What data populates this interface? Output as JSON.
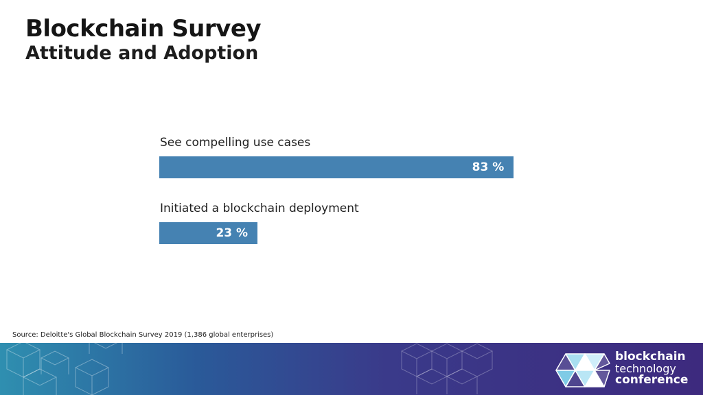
{
  "header": {
    "title": "Blockchain Survey",
    "subtitle": "Attitude and Adoption"
  },
  "chart_data": {
    "type": "bar",
    "orientation": "horizontal",
    "categories": [
      "See compelling use cases",
      "Initiated a blockchain deployment"
    ],
    "values": [
      83,
      23
    ],
    "value_labels": [
      "83 %",
      "23 %"
    ],
    "unit": "%",
    "xlim": [
      0,
      100
    ],
    "grid": false,
    "bar_color": "#4582b2"
  },
  "footer": {
    "source": "Source: Deloitte's Global Blockchain Survey 2019 (1,386 global enterprises)",
    "logo": {
      "line1": "blockchain",
      "line2": "technology",
      "line3": "conference"
    }
  }
}
